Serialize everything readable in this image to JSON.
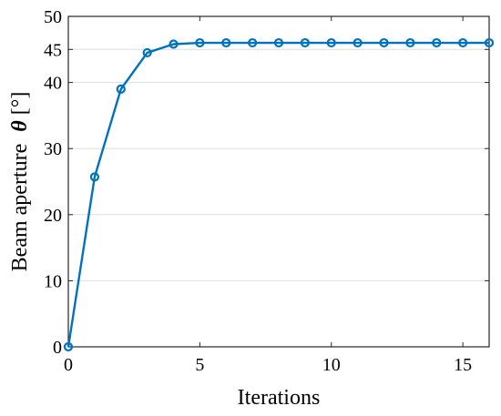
{
  "chart_data": {
    "type": "line",
    "title": "",
    "xlabel": "Iterations",
    "ylabel": "Beam aperture",
    "ylabel_symbol": "θ",
    "ylabel_unit": "[°]",
    "xlim": [
      0,
      16
    ],
    "ylim": [
      0,
      50
    ],
    "xticks": [
      0,
      5,
      10,
      15
    ],
    "yticks": [
      0,
      10,
      20,
      30,
      40,
      45,
      50
    ],
    "grid": "horizontal",
    "legend": "none",
    "series_color": "#0072BD",
    "marker": "circle",
    "series": [
      {
        "x": [
          0,
          1,
          2,
          3,
          4,
          5,
          6,
          7,
          8,
          9,
          10,
          11,
          12,
          13,
          14,
          15,
          16
        ],
        "y": [
          0,
          25.7,
          39.0,
          44.5,
          45.8,
          46.0,
          46.0,
          46.0,
          46.0,
          46.0,
          46.0,
          46.0,
          46.0,
          46.0,
          46.0,
          46.0,
          46.0
        ]
      }
    ]
  }
}
